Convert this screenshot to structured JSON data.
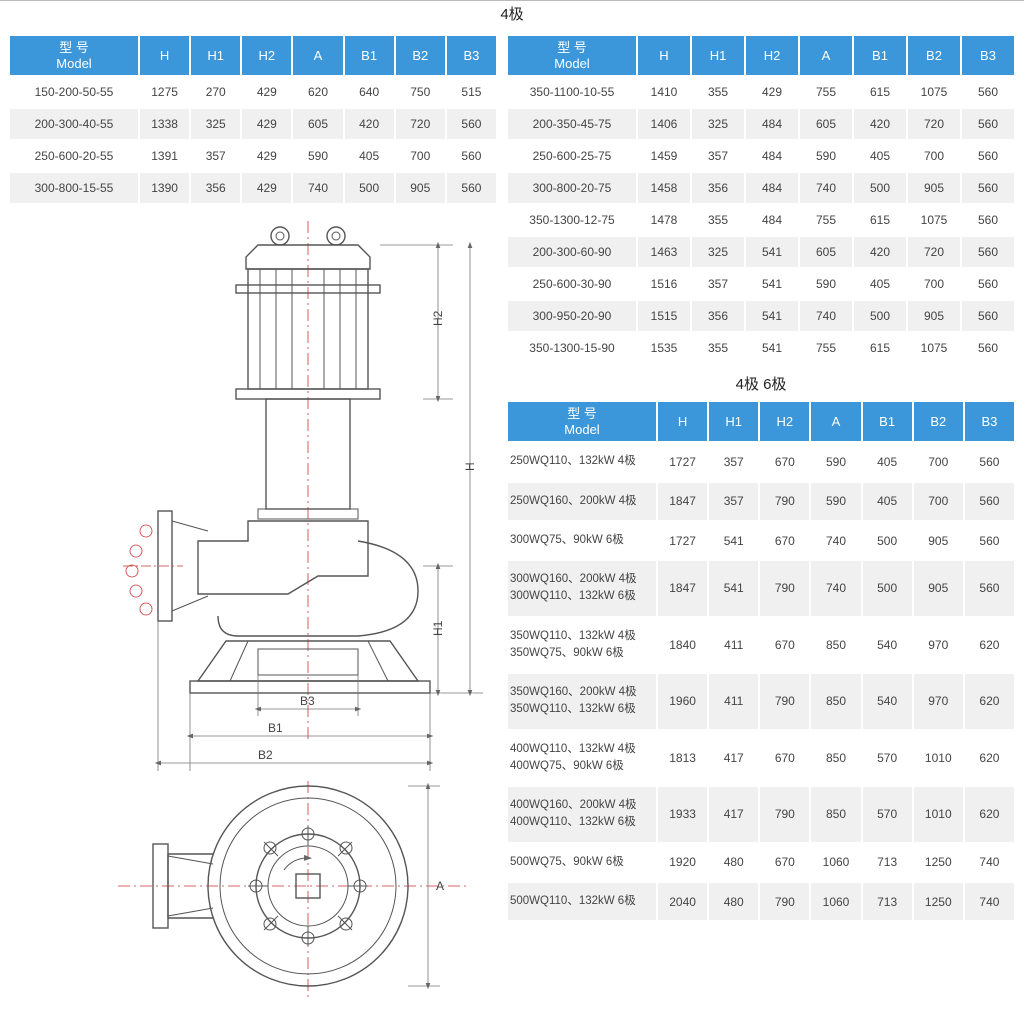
{
  "title_top": "4极",
  "title_mid": "4极   6极",
  "headers": {
    "model_cn": "型 号",
    "model_en": "Model",
    "H": "H",
    "H1": "H1",
    "H2": "H2",
    "A": "A",
    "B1": "B1",
    "B2": "B2",
    "B3": "B3"
  },
  "colors": {
    "header_bg": "#3b97d9",
    "header_fg": "#ffffff",
    "row_alt": "#f0f0f0",
    "centerline": "#c33333"
  },
  "table1": [
    {
      "m": "150-200-50-55",
      "H": "1275",
      "H1": "270",
      "H2": "429",
      "A": "620",
      "B1": "640",
      "B2": "750",
      "B3": "515"
    },
    {
      "m": "200-300-40-55",
      "H": "1338",
      "H1": "325",
      "H2": "429",
      "A": "605",
      "B1": "420",
      "B2": "720",
      "B3": "560"
    },
    {
      "m": "250-600-20-55",
      "H": "1391",
      "H1": "357",
      "H2": "429",
      "A": "590",
      "B1": "405",
      "B2": "700",
      "B3": "560"
    },
    {
      "m": "300-800-15-55",
      "H": "1390",
      "H1": "356",
      "H2": "429",
      "A": "740",
      "B1": "500",
      "B2": "905",
      "B3": "560"
    }
  ],
  "table2": [
    {
      "m": "350-1100-10-55",
      "H": "1410",
      "H1": "355",
      "H2": "429",
      "A": "755",
      "B1": "615",
      "B2": "1075",
      "B3": "560"
    },
    {
      "m": "200-350-45-75",
      "H": "1406",
      "H1": "325",
      "H2": "484",
      "A": "605",
      "B1": "420",
      "B2": "720",
      "B3": "560"
    },
    {
      "m": "250-600-25-75",
      "H": "1459",
      "H1": "357",
      "H2": "484",
      "A": "590",
      "B1": "405",
      "B2": "700",
      "B3": "560"
    },
    {
      "m": "300-800-20-75",
      "H": "1458",
      "H1": "356",
      "H2": "484",
      "A": "740",
      "B1": "500",
      "B2": "905",
      "B3": "560"
    },
    {
      "m": "350-1300-12-75",
      "H": "1478",
      "H1": "355",
      "H2": "484",
      "A": "755",
      "B1": "615",
      "B2": "1075",
      "B3": "560"
    },
    {
      "m": "200-300-60-90",
      "H": "1463",
      "H1": "325",
      "H2": "541",
      "A": "605",
      "B1": "420",
      "B2": "720",
      "B3": "560"
    },
    {
      "m": "250-600-30-90",
      "H": "1516",
      "H1": "357",
      "H2": "541",
      "A": "590",
      "B1": "405",
      "B2": "700",
      "B3": "560"
    },
    {
      "m": "300-950-20-90",
      "H": "1515",
      "H1": "356",
      "H2": "541",
      "A": "740",
      "B1": "500",
      "B2": "905",
      "B3": "560"
    },
    {
      "m": "350-1300-15-90",
      "H": "1535",
      "H1": "355",
      "H2": "541",
      "A": "755",
      "B1": "615",
      "B2": "1075",
      "B3": "560"
    }
  ],
  "table3": [
    {
      "m": "250WQ110、132kW 4极",
      "H": "1727",
      "H1": "357",
      "H2": "670",
      "A": "590",
      "B1": "405",
      "B2": "700",
      "B3": "560"
    },
    {
      "m": "250WQ160、200kW 4极",
      "H": "1847",
      "H1": "357",
      "H2": "790",
      "A": "590",
      "B1": "405",
      "B2": "700",
      "B3": "560"
    },
    {
      "m": "300WQ75、90kW 6极",
      "H": "1727",
      "H1": "541",
      "H2": "670",
      "A": "740",
      "B1": "500",
      "B2": "905",
      "B3": "560"
    },
    {
      "m": "300WQ160、200kW 4极\n300WQ110、132kW 6极",
      "H": "1847",
      "H1": "541",
      "H2": "790",
      "A": "740",
      "B1": "500",
      "B2": "905",
      "B3": "560"
    },
    {
      "m": "350WQ110、132kW 4极\n350WQ75、90kW 6极",
      "H": "1840",
      "H1": "411",
      "H2": "670",
      "A": "850",
      "B1": "540",
      "B2": "970",
      "B3": "620"
    },
    {
      "m": "350WQ160、200kW 4极\n350WQ110、132kW 6极",
      "H": "1960",
      "H1": "411",
      "H2": "790",
      "A": "850",
      "B1": "540",
      "B2": "970",
      "B3": "620"
    },
    {
      "m": "400WQ110、132kW 4极\n400WQ75、90kW 6极",
      "H": "1813",
      "H1": "417",
      "H2": "670",
      "A": "850",
      "B1": "570",
      "B2": "1010",
      "B3": "620"
    },
    {
      "m": "400WQ160、200kW 4极\n400WQ110、132kW 6极",
      "H": "1933",
      "H1": "417",
      "H2": "790",
      "A": "850",
      "B1": "570",
      "B2": "1010",
      "B3": "620"
    },
    {
      "m": "500WQ75、90kW 6极",
      "H": "1920",
      "H1": "480",
      "H2": "670",
      "A": "1060",
      "B1": "713",
      "B2": "1250",
      "B3": "740"
    },
    {
      "m": "500WQ110、132kW 6极",
      "H": "2040",
      "H1": "480",
      "H2": "790",
      "A": "1060",
      "B1": "713",
      "B2": "1250",
      "B3": "740"
    }
  ],
  "dim_labels": {
    "H": "H",
    "H1": "H1",
    "H2": "H2",
    "A": "A",
    "B1": "B1",
    "B2": "B2",
    "B3": "B3"
  }
}
